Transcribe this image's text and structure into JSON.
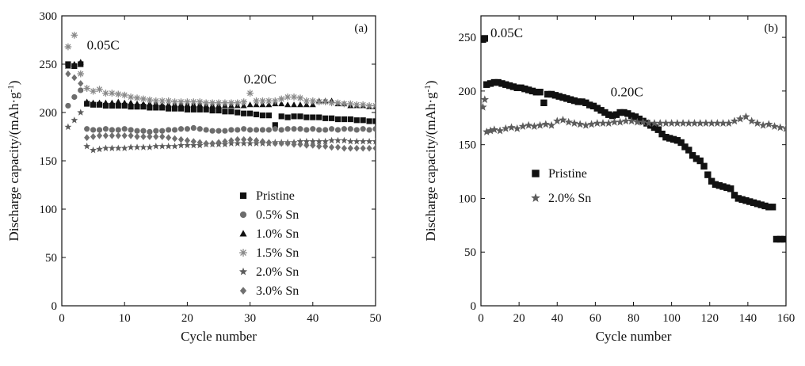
{
  "chart_data": [
    {
      "panel_label": "(a)",
      "type": "scatter",
      "xlabel": "Cycle number",
      "ylabel": "Discharge capacity/(mAh·g-1)",
      "xlim": [
        0,
        50
      ],
      "ylim": [
        0,
        300
      ],
      "xticks": [
        0,
        10,
        20,
        30,
        40,
        50
      ],
      "yticks": [
        0,
        50,
        100,
        150,
        200,
        250,
        300
      ],
      "legend_position": "lower-center",
      "annotations": [
        {
          "text": "0.05C",
          "x": 4,
          "y": 265
        },
        {
          "text": "0.20C",
          "x": 29,
          "y": 230
        }
      ],
      "series": [
        {
          "name": "Pristine",
          "marker": "square",
          "x": [
            1,
            2,
            3,
            4,
            5,
            6,
            7,
            8,
            9,
            10,
            11,
            12,
            13,
            14,
            15,
            16,
            17,
            18,
            19,
            20,
            21,
            22,
            23,
            24,
            25,
            26,
            27,
            28,
            29,
            30,
            31,
            32,
            33,
            34,
            35,
            36,
            37,
            38,
            39,
            40,
            41,
            42,
            43,
            44,
            45,
            46,
            47,
            48,
            49,
            50
          ],
          "values": [
            250,
            248,
            250,
            209,
            208,
            208,
            207,
            207,
            207,
            207,
            206,
            206,
            206,
            205,
            205,
            205,
            204,
            204,
            204,
            203,
            203,
            203,
            203,
            202,
            202,
            201,
            201,
            200,
            199,
            199,
            198,
            197,
            197,
            187,
            196,
            195,
            196,
            196,
            195,
            195,
            195,
            194,
            194,
            193,
            193,
            193,
            192,
            192,
            191,
            191
          ]
        },
        {
          "name": "0.5% Sn",
          "marker": "circle",
          "x": [
            1,
            2,
            3,
            4,
            5,
            6,
            7,
            8,
            9,
            10,
            11,
            12,
            13,
            14,
            15,
            16,
            17,
            18,
            19,
            20,
            21,
            22,
            23,
            24,
            25,
            26,
            27,
            28,
            29,
            30,
            31,
            32,
            33,
            34,
            35,
            36,
            37,
            38,
            39,
            40,
            41,
            42,
            43,
            44,
            45,
            46,
            47,
            48,
            49,
            50
          ],
          "values": [
            207,
            216,
            223,
            183,
            182,
            182,
            183,
            182,
            182,
            183,
            182,
            181,
            181,
            180,
            181,
            181,
            182,
            182,
            183,
            183,
            184,
            183,
            182,
            181,
            181,
            181,
            182,
            182,
            183,
            182,
            182,
            182,
            182,
            183,
            182,
            183,
            183,
            183,
            182,
            183,
            182,
            182,
            183,
            182,
            183,
            183,
            182,
            183,
            182,
            183
          ]
        },
        {
          "name": "1.0% Sn",
          "marker": "triangle",
          "x": [
            1,
            2,
            3,
            4,
            5,
            6,
            7,
            8,
            9,
            10,
            11,
            12,
            13,
            14,
            15,
            16,
            17,
            18,
            19,
            20,
            21,
            22,
            23,
            24,
            25,
            26,
            27,
            28,
            29,
            30,
            31,
            32,
            33,
            34,
            35,
            36,
            37,
            38,
            39,
            40,
            41,
            42,
            43,
            44,
            45,
            46,
            47,
            48,
            49,
            50
          ],
          "values": [
            248,
            250,
            252,
            211,
            210,
            210,
            210,
            210,
            211,
            210,
            210,
            209,
            209,
            209,
            209,
            208,
            208,
            208,
            208,
            208,
            208,
            208,
            207,
            207,
            207,
            207,
            207,
            207,
            207,
            208,
            208,
            208,
            208,
            209,
            209,
            208,
            208,
            208,
            208,
            208,
            212,
            212,
            212,
            209,
            209,
            207,
            207,
            207,
            206,
            206
          ]
        },
        {
          "name": "1.5% Sn",
          "marker": "asterisk",
          "x": [
            1,
            2,
            3,
            4,
            5,
            6,
            7,
            8,
            9,
            10,
            11,
            12,
            13,
            14,
            15,
            16,
            17,
            18,
            19,
            20,
            21,
            22,
            23,
            24,
            25,
            26,
            27,
            28,
            29,
            30,
            31,
            32,
            33,
            34,
            35,
            36,
            37,
            38,
            39,
            40,
            41,
            42,
            43,
            44,
            45,
            46,
            47,
            48,
            49,
            50
          ],
          "values": [
            268,
            280,
            240,
            225,
            222,
            224,
            220,
            220,
            219,
            218,
            216,
            215,
            214,
            213,
            212,
            212,
            212,
            211,
            211,
            211,
            211,
            211,
            210,
            210,
            210,
            210,
            210,
            210,
            211,
            220,
            212,
            212,
            212,
            212,
            214,
            216,
            216,
            215,
            212,
            212,
            211,
            211,
            210,
            210,
            209,
            209,
            208,
            208,
            207,
            207
          ]
        },
        {
          "name": "2.0% Sn",
          "marker": "star",
          "x": [
            1,
            2,
            3,
            4,
            5,
            6,
            7,
            8,
            9,
            10,
            11,
            12,
            13,
            14,
            15,
            16,
            17,
            18,
            19,
            20,
            21,
            22,
            23,
            24,
            25,
            26,
            27,
            28,
            29,
            30,
            31,
            32,
            33,
            34,
            35,
            36,
            37,
            38,
            39,
            40,
            41,
            42,
            43,
            44,
            45,
            46,
            47,
            48,
            49,
            50
          ],
          "values": [
            185,
            192,
            200,
            165,
            161,
            162,
            163,
            163,
            163,
            163,
            164,
            164,
            164,
            164,
            165,
            165,
            165,
            165,
            166,
            166,
            166,
            166,
            167,
            167,
            167,
            167,
            168,
            168,
            168,
            168,
            168,
            168,
            168,
            169,
            169,
            169,
            169,
            170,
            170,
            170,
            170,
            170,
            171,
            171,
            171,
            170,
            170,
            170,
            170,
            170
          ]
        },
        {
          "name": "3.0% Sn",
          "marker": "diamond",
          "x": [
            1,
            2,
            3,
            4,
            5,
            6,
            7,
            8,
            9,
            10,
            11,
            12,
            13,
            14,
            15,
            16,
            17,
            18,
            19,
            20,
            21,
            22,
            23,
            24,
            25,
            26,
            27,
            28,
            29,
            30,
            31,
            32,
            33,
            34,
            35,
            36,
            37,
            38,
            39,
            40,
            41,
            42,
            43,
            44,
            45,
            46,
            47,
            48,
            49,
            50
          ],
          "values": [
            240,
            236,
            230,
            174,
            175,
            176,
            176,
            176,
            176,
            176,
            176,
            175,
            175,
            175,
            175,
            175,
            174,
            173,
            172,
            171,
            170,
            169,
            168,
            168,
            169,
            170,
            171,
            172,
            172,
            172,
            171,
            170,
            169,
            168,
            168,
            168,
            167,
            167,
            166,
            166,
            165,
            165,
            164,
            164,
            163,
            163,
            163,
            163,
            163,
            163
          ]
        }
      ]
    },
    {
      "panel_label": "(b)",
      "type": "scatter",
      "xlabel": "Cycle number",
      "ylabel": "Discharge capacity/(mAh·g-1)",
      "xlim": [
        0,
        160
      ],
      "ylim": [
        0,
        270
      ],
      "xticks": [
        0,
        20,
        40,
        60,
        80,
        100,
        120,
        140,
        160
      ],
      "yticks": [
        0,
        50,
        100,
        150,
        200,
        250
      ],
      "legend_position": "center-left",
      "annotations": [
        {
          "text": "0.05C",
          "x": 5,
          "y": 250
        },
        {
          "text": "0.20C",
          "x": 68,
          "y": 195
        }
      ],
      "series": [
        {
          "name": "Pristine",
          "marker": "square",
          "x": [
            1,
            2,
            3,
            5,
            7,
            9,
            11,
            13,
            15,
            17,
            19,
            21,
            23,
            25,
            27,
            29,
            31,
            33,
            35,
            37,
            39,
            41,
            43,
            45,
            47,
            49,
            51,
            53,
            55,
            57,
            59,
            61,
            63,
            65,
            67,
            69,
            71,
            73,
            75,
            77,
            79,
            81,
            83,
            85,
            87,
            89,
            91,
            93,
            95,
            97,
            99,
            101,
            103,
            105,
            107,
            109,
            111,
            113,
            115,
            117,
            119,
            121,
            123,
            125,
            127,
            129,
            131,
            133,
            135,
            137,
            139,
            141,
            143,
            145,
            147,
            149,
            151,
            153,
            155,
            157,
            159
          ],
          "values": [
            248,
            249,
            206,
            207,
            208,
            208,
            207,
            206,
            205,
            204,
            203,
            203,
            202,
            201,
            200,
            199,
            199,
            189,
            197,
            197,
            196,
            195,
            194,
            193,
            192,
            191,
            190,
            190,
            189,
            187,
            186,
            184,
            182,
            180,
            178,
            177,
            178,
            180,
            180,
            179,
            177,
            176,
            174,
            172,
            170,
            168,
            166,
            164,
            160,
            157,
            156,
            155,
            154,
            152,
            148,
            145,
            140,
            137,
            135,
            130,
            122,
            116,
            113,
            112,
            111,
            110,
            109,
            103,
            100,
            99,
            98,
            97,
            96,
            95,
            94,
            93,
            92,
            92,
            62,
            62,
            62
          ]
        },
        {
          "name": "2.0% Sn",
          "marker": "star",
          "x": [
            1,
            2,
            3,
            5,
            7,
            10,
            13,
            16,
            19,
            22,
            25,
            28,
            31,
            34,
            37,
            40,
            43,
            46,
            49,
            52,
            55,
            58,
            61,
            64,
            67,
            70,
            73,
            76,
            79,
            82,
            85,
            88,
            91,
            94,
            97,
            100,
            103,
            106,
            109,
            112,
            115,
            118,
            121,
            124,
            127,
            130,
            133,
            136,
            139,
            142,
            145,
            148,
            151,
            154,
            157,
            160
          ],
          "values": [
            185,
            192,
            162,
            163,
            164,
            163,
            165,
            166,
            165,
            167,
            168,
            167,
            168,
            169,
            168,
            172,
            173,
            171,
            170,
            169,
            168,
            169,
            170,
            170,
            170,
            171,
            171,
            172,
            172,
            171,
            171,
            170,
            170,
            170,
            170,
            170,
            170,
            170,
            170,
            170,
            170,
            170,
            170,
            170,
            170,
            170,
            172,
            174,
            176,
            172,
            170,
            168,
            169,
            167,
            166,
            165
          ]
        }
      ]
    }
  ]
}
